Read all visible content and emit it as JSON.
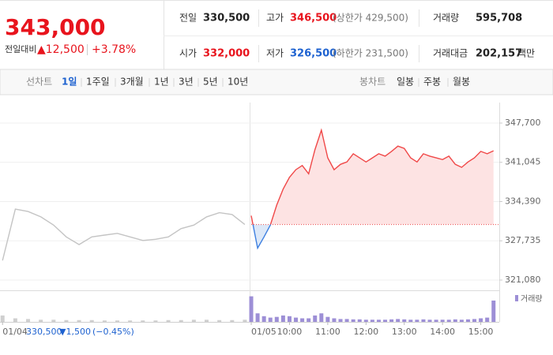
{
  "quote": {
    "price": "343,000",
    "change_label": "전일대비",
    "change": "▲12,500",
    "rate": "+3.78%"
  },
  "stats": [
    {
      "label": "전일",
      "value": "330,500"
    },
    {
      "label": "고가",
      "value": "346,500",
      "note": "(상한가 429,500)"
    },
    {
      "label": "거래량",
      "value": "595,708"
    },
    {
      "label": "시가",
      "value": "332,000"
    },
    {
      "label": "저가",
      "value": "326,500",
      "note": "(하한가 231,500)"
    },
    {
      "label": "거래대금",
      "value": "202,157",
      "unit": "백만"
    }
  ],
  "line_tabs": {
    "label": "선차트",
    "items": [
      "1일",
      "1주일",
      "3개월",
      "1년",
      "3년",
      "5년",
      "10년"
    ]
  },
  "candle_tabs": {
    "label": "봉차트",
    "items": [
      "일봉",
      "주봉",
      "월봉"
    ]
  },
  "chart_data": [
    {
      "type": "line",
      "xlim": [
        -394,
        389
      ],
      "ylim": [
        319340,
        349840
      ],
      "yticks": [
        {
          "value": 321080,
          "label": "321,080"
        },
        {
          "value": 327735,
          "label": "327,735"
        },
        {
          "value": 334390,
          "label": "334,390"
        },
        {
          "value": 341045,
          "label": "341,045"
        },
        {
          "value": 347700,
          "label": "347,700"
        }
      ],
      "xticks": [
        {
          "value": -390,
          "label": "01/04"
        },
        {
          "value": 0,
          "label": "01/05"
        },
        {
          "value": 60,
          "label": "10:00"
        },
        {
          "value": 120,
          "label": "11:00"
        },
        {
          "value": 180,
          "label": "12:00"
        },
        {
          "value": 240,
          "label": "13:00"
        },
        {
          "value": 300,
          "label": "14:00"
        },
        {
          "value": 360,
          "label": "15:00"
        }
      ],
      "grid": true,
      "reference": 330500,
      "annotation": {
        "close": "330,500",
        "change": "▼1,500",
        "rate": "(−0.45%)"
      },
      "series": [
        {
          "color": "#c4c4c4",
          "x": [
            -390,
            -370,
            -350,
            -330,
            -310,
            -290,
            -270,
            -250,
            -230,
            -210,
            -190,
            -170,
            -150,
            -130,
            -110,
            -90,
            -70,
            -50,
            -30,
            -10
          ],
          "values": [
            324400,
            333100,
            332700,
            331800,
            330400,
            328400,
            327100,
            328400,
            328700,
            329000,
            328400,
            327800,
            328000,
            328400,
            329800,
            330400,
            331800,
            332500,
            332200,
            330500
          ]
        },
        {
          "color": "#f04848",
          "color_below": "#3d7fe0",
          "x": [
            0,
            10,
            20,
            30,
            40,
            50,
            60,
            70,
            80,
            90,
            100,
            110,
            120,
            130,
            140,
            150,
            160,
            170,
            180,
            190,
            200,
            210,
            220,
            230,
            240,
            250,
            260,
            270,
            280,
            290,
            300,
            310,
            320,
            330,
            340,
            350,
            360,
            370,
            380
          ],
          "values": [
            332000,
            326500,
            328400,
            330400,
            333800,
            336500,
            338500,
            339800,
            340500,
            339100,
            343200,
            346500,
            341800,
            339800,
            340700,
            341100,
            342500,
            341800,
            341100,
            341800,
            342500,
            342100,
            342900,
            343800,
            343400,
            341800,
            341100,
            342500,
            342100,
            341800,
            341500,
            342100,
            340700,
            340200,
            341100,
            341800,
            342900,
            342500,
            343000
          ]
        }
      ]
    },
    {
      "type": "bar",
      "ylim": [
        0,
        40000
      ],
      "series": [
        {
          "name": "거래량",
          "color": "#9d8fd6",
          "x": [
            0,
            10,
            20,
            30,
            40,
            50,
            60,
            70,
            80,
            90,
            100,
            110,
            120,
            130,
            140,
            150,
            160,
            170,
            180,
            190,
            200,
            210,
            220,
            230,
            240,
            250,
            260,
            270,
            280,
            290,
            300,
            310,
            320,
            330,
            340,
            350,
            360,
            370,
            380
          ],
          "values": [
            36000,
            12000,
            8000,
            6000,
            7000,
            9000,
            8000,
            6000,
            5000,
            5000,
            9000,
            12000,
            7000,
            5000,
            4000,
            4000,
            3500,
            3500,
            3000,
            3000,
            3000,
            3000,
            3500,
            4000,
            3500,
            3000,
            3000,
            3500,
            3000,
            3000,
            3000,
            3000,
            3500,
            3000,
            3500,
            4000,
            5000,
            6000,
            30000
          ]
        },
        {
          "color": "#cfcfcf",
          "x": [
            -390,
            -370,
            -350,
            -330,
            -310,
            -290,
            -270,
            -250,
            -230,
            -210,
            -190,
            -170,
            -150,
            -130,
            -110,
            -90,
            -70,
            -50,
            -30,
            -10
          ],
          "values": [
            9000,
            5000,
            4000,
            3000,
            3000,
            2500,
            2500,
            2500,
            2000,
            2000,
            2000,
            2000,
            2000,
            2500,
            2500,
            3000,
            3000,
            2500,
            2500,
            3000
          ]
        }
      ]
    }
  ]
}
